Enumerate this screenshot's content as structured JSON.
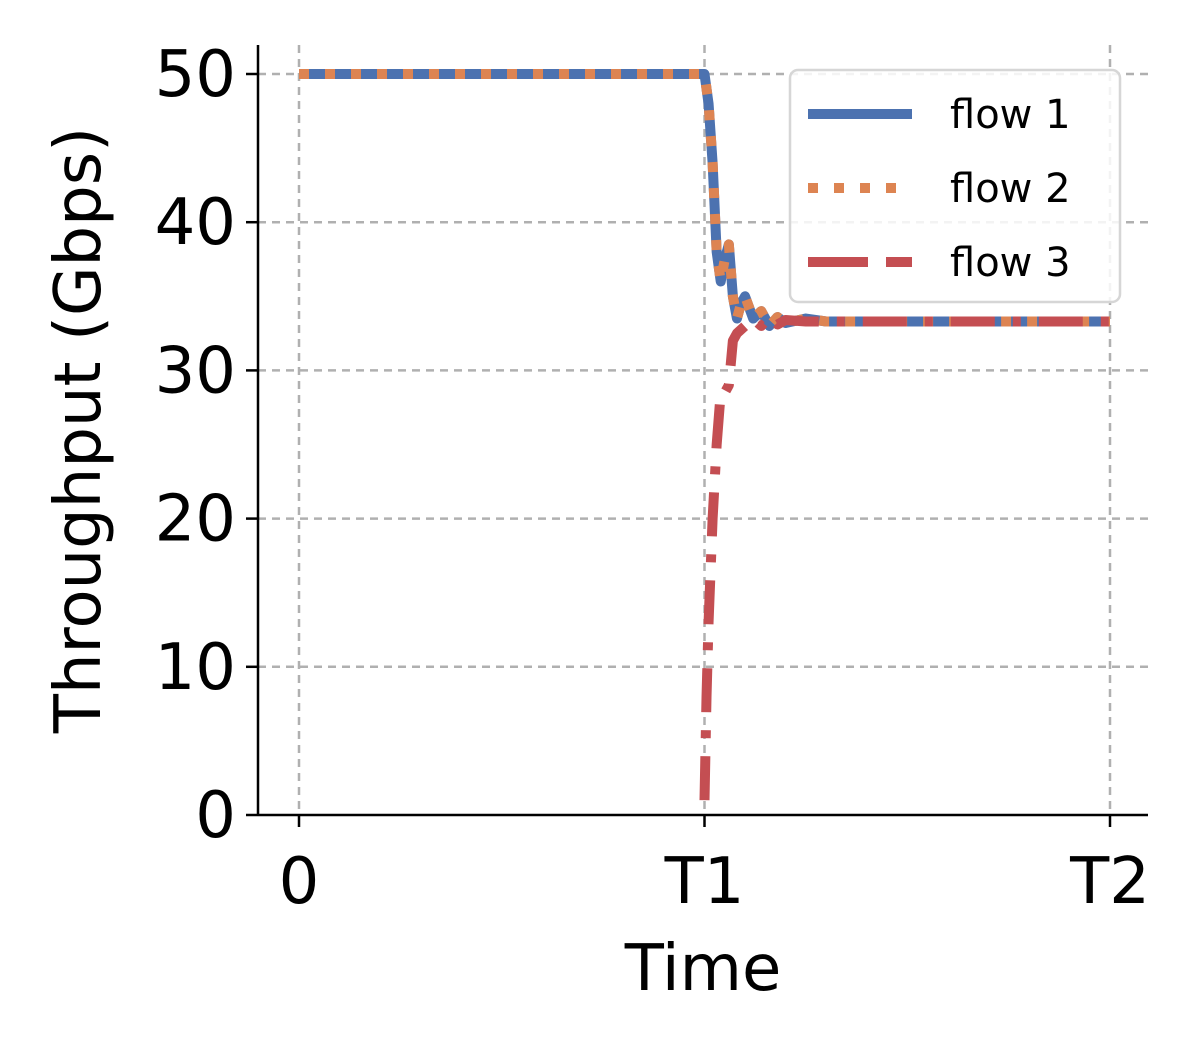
{
  "chart_data": {
    "type": "line",
    "xlabel": "Time",
    "ylabel": "Throughput (Gbps)",
    "xlim": [
      -0.05,
      2.05
    ],
    "ylim": [
      0,
      52
    ],
    "x_ticks": [
      0,
      1,
      2
    ],
    "x_tick_labels": [
      "0",
      "T1",
      "T2"
    ],
    "y_ticks": [
      0,
      10,
      20,
      30,
      40,
      50
    ],
    "y_tick_labels": [
      "0",
      "10",
      "20",
      "30",
      "40",
      "50"
    ],
    "grid": true,
    "legend_position": "top-right",
    "series": [
      {
        "name": "flow 1",
        "color": "#4c72b0",
        "style": "solid",
        "x": [
          0,
          1.0,
          1.01,
          1.02,
          1.03,
          1.04,
          1.05,
          1.06,
          1.07,
          1.08,
          1.09,
          1.1,
          1.12,
          1.14,
          1.16,
          1.18,
          1.2,
          1.25,
          1.3,
          1.4,
          2.0
        ],
        "y": [
          50,
          50,
          48,
          44,
          38,
          36,
          37.5,
          38.5,
          35,
          33.5,
          34.5,
          35,
          33.5,
          34,
          33,
          33.6,
          33.2,
          33.5,
          33.3,
          33.3,
          33.3
        ]
      },
      {
        "name": "flow 2",
        "color": "#dd8452",
        "style": "dotted",
        "x": [
          0,
          1.0,
          1.01,
          1.02,
          1.03,
          1.04,
          1.05,
          1.06,
          1.07,
          1.08,
          1.09,
          1.1,
          1.12,
          1.14,
          1.16,
          1.18,
          1.2,
          1.25,
          1.3,
          1.4,
          2.0
        ],
        "y": [
          50,
          50,
          48,
          44,
          38,
          36,
          37.5,
          38.5,
          35,
          33.5,
          34.5,
          35,
          33.5,
          34,
          33,
          33.6,
          33.2,
          33.5,
          33.3,
          33.3,
          33.3
        ]
      },
      {
        "name": "flow 3",
        "color": "#c44e52",
        "style": "dashdot",
        "x": [
          1.0,
          1.005,
          1.01,
          1.02,
          1.03,
          1.04,
          1.05,
          1.06,
          1.07,
          1.08,
          1.1,
          1.12,
          1.14,
          1.16,
          1.18,
          1.2,
          1.25,
          1.3,
          1.4,
          2.0
        ],
        "y": [
          1,
          8,
          13,
          20,
          25,
          28.5,
          28.5,
          29,
          32,
          32.5,
          33,
          33.5,
          33,
          33.6,
          33.1,
          33.4,
          33.3,
          33.3,
          33.3,
          33.3
        ]
      }
    ]
  }
}
